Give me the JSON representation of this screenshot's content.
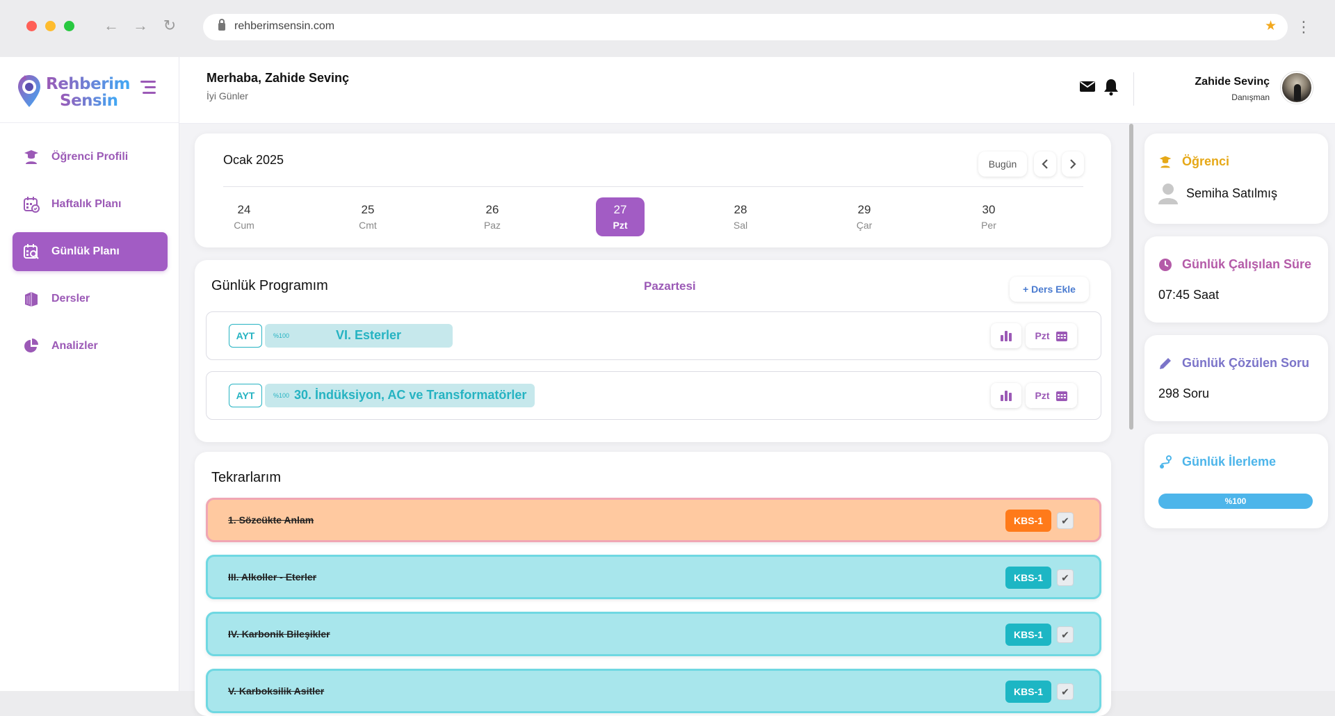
{
  "browser": {
    "url": "rehberimsensin.com"
  },
  "brand": {
    "line1": "Rehberim",
    "line2": "Sensin"
  },
  "sidebar": {
    "items": [
      {
        "label": "Öğrenci Profili",
        "icon": "graduate-icon",
        "active": false
      },
      {
        "label": "Haftalık Planı",
        "icon": "calendar-week-icon",
        "active": false
      },
      {
        "label": "Günlük Planı",
        "icon": "calendar-search-icon",
        "active": true
      },
      {
        "label": "Dersler",
        "icon": "book-icon",
        "active": false
      },
      {
        "label": "Analizler",
        "icon": "pie-chart-icon",
        "active": false
      }
    ]
  },
  "header": {
    "greeting": "Merhaba, Zahide Sevinç",
    "subtitle": "İyi Günler",
    "user_name": "Zahide Sevinç",
    "user_role": "Danışman"
  },
  "calendar": {
    "month": "Ocak 2025",
    "today_label": "Bugün",
    "days": [
      {
        "num": "24",
        "label": "Cum",
        "active": false
      },
      {
        "num": "25",
        "label": "Cmt",
        "active": false
      },
      {
        "num": "26",
        "label": "Paz",
        "active": false
      },
      {
        "num": "27",
        "label": "Pzt",
        "active": true
      },
      {
        "num": "28",
        "label": "Sal",
        "active": false
      },
      {
        "num": "29",
        "label": "Çar",
        "active": false
      },
      {
        "num": "30",
        "label": "Per",
        "active": false
      }
    ]
  },
  "program": {
    "title": "Günlük Programım",
    "day": "Pazartesi",
    "add_label": "+ Ders Ekle",
    "lessons": [
      {
        "tag": "AYT",
        "percent": "%100",
        "title": "VI. Esterler",
        "day": "Pzt"
      },
      {
        "tag": "AYT",
        "percent": "%100",
        "title": "30. İndüksiyon, AC ve Transformatörler",
        "day": "Pzt"
      }
    ]
  },
  "repeats": {
    "title": "Tekrarlarım",
    "items": [
      {
        "title": "1. Sözcükte Anlam",
        "badge": "KBS-1",
        "color": "orange"
      },
      {
        "title": "III. Alkoller - Eterler",
        "badge": "KBS-1",
        "color": "teal"
      },
      {
        "title": "IV. Karbonik Bileşikler",
        "badge": "KBS-1",
        "color": "teal"
      },
      {
        "title": "V. Karboksilik Asitler",
        "badge": "KBS-1",
        "color": "teal"
      }
    ]
  },
  "right_panel": {
    "student": {
      "title": "Öğrenci",
      "name": "Semiha Satılmış",
      "color": "#e6a817"
    },
    "study_time": {
      "title": "Günlük Çalışılan Süre",
      "value": "07:45 Saat",
      "color": "#b45ba8"
    },
    "solved": {
      "title": "Günlük Çözülen Soru",
      "value": "298 Soru",
      "color": "#7b74c9"
    },
    "progress": {
      "title": "Günlük İlerleme",
      "value": "%100",
      "fraction": 1.0,
      "color": "#4db5ea"
    }
  }
}
